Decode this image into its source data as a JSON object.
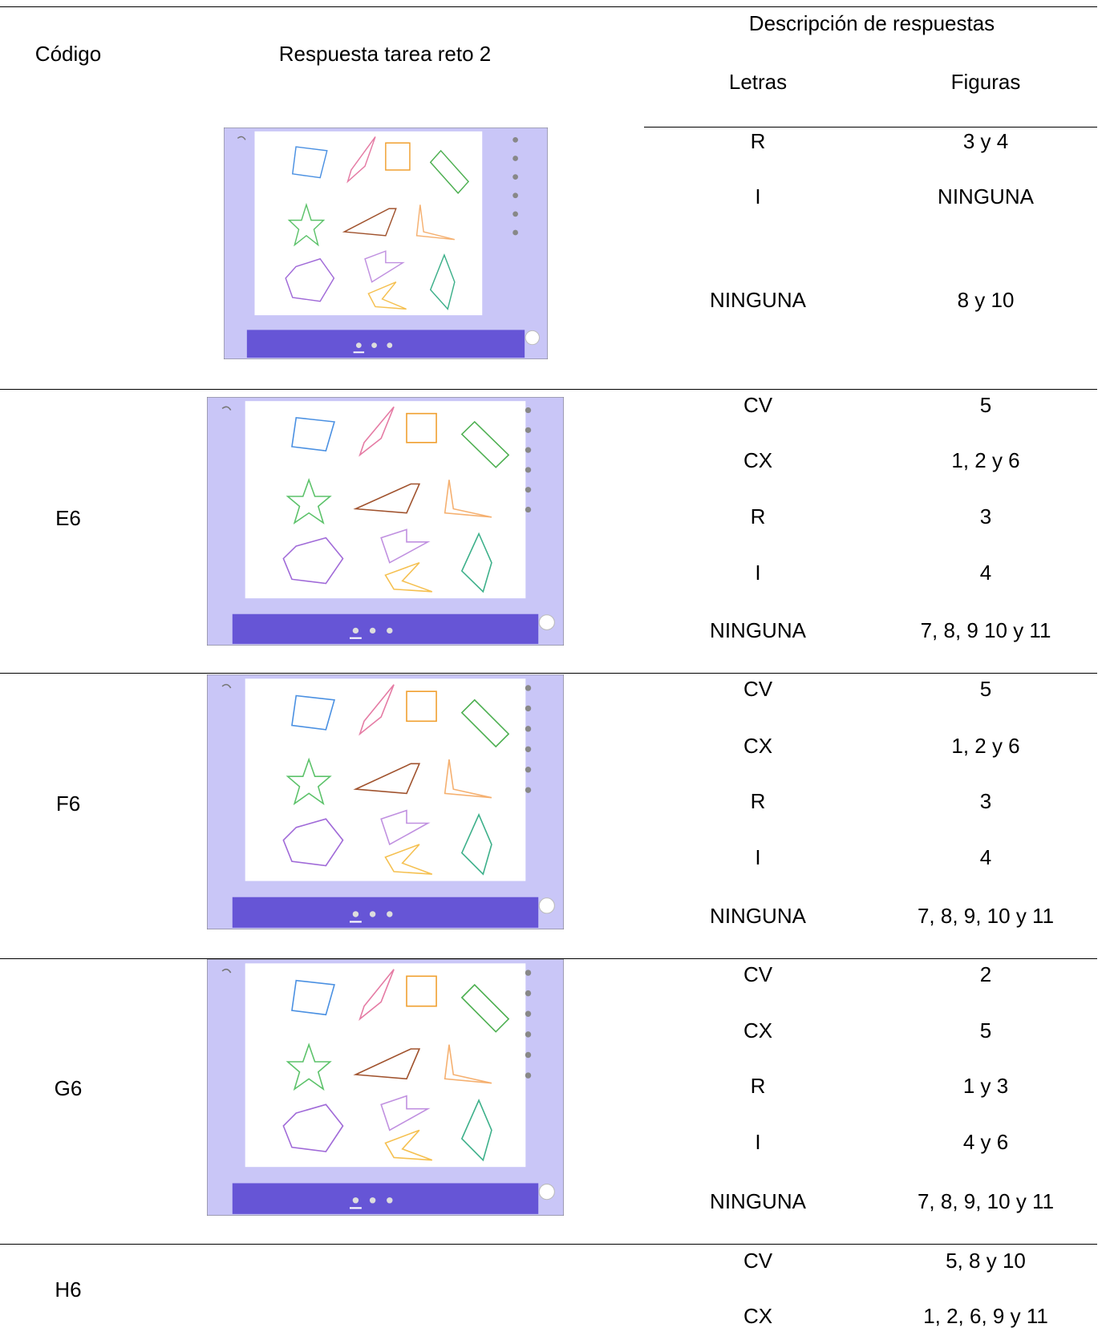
{
  "header": {
    "code": "Código",
    "response": "Respuesta tarea reto 2",
    "description": "Descripción de respuestas",
    "letters": "Letras",
    "figures": "Figuras"
  },
  "rows": [
    {
      "items": [
        [
          "R",
          "3 y 4"
        ],
        [
          "I",
          "NINGUNA"
        ],
        [
          "NINGUNA",
          "8 y 10"
        ]
      ]
    },
    {
      "code": "E6",
      "items": [
        [
          "CV",
          "5"
        ],
        [
          "CX",
          "1, 2 y 6"
        ],
        [
          "R",
          "3"
        ],
        [
          "I",
          "4"
        ],
        [
          "NINGUNA",
          "7, 8, 9 10 y 11"
        ]
      ]
    },
    {
      "code": "F6",
      "items": [
        [
          "CV",
          "5"
        ],
        [
          "CX",
          "1, 2 y 6"
        ],
        [
          "R",
          "3"
        ],
        [
          "I",
          "4"
        ],
        [
          "NINGUNA",
          "7, 8, 9, 10 y 11"
        ]
      ]
    },
    {
      "code": "G6",
      "items": [
        [
          "CV",
          "2"
        ],
        [
          "CX",
          "5"
        ],
        [
          "R",
          "1 y 3"
        ],
        [
          "I",
          "4 y 6"
        ],
        [
          "NINGUNA",
          "7, 8, 9, 10 y 11"
        ]
      ]
    },
    {
      "code": "H6",
      "items": [
        [
          "CV",
          "5, 8 y 10"
        ],
        [
          "CX",
          "1, 2, 6, 9 y 11"
        ]
      ]
    }
  ]
}
